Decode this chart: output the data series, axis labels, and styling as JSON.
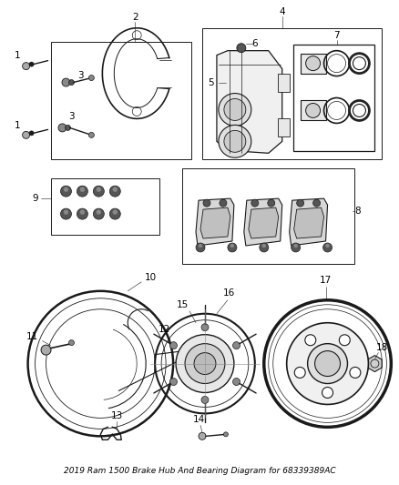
{
  "title": "2019 Ram 1500 Brake Hub And Bearing Diagram for 68339389AC",
  "bg": "#ffffff",
  "lc": "#1a1a1a",
  "tc": "#000000",
  "fs": 7.5,
  "fig_w": 4.38,
  "fig_h": 5.33,
  "dpi": 100
}
